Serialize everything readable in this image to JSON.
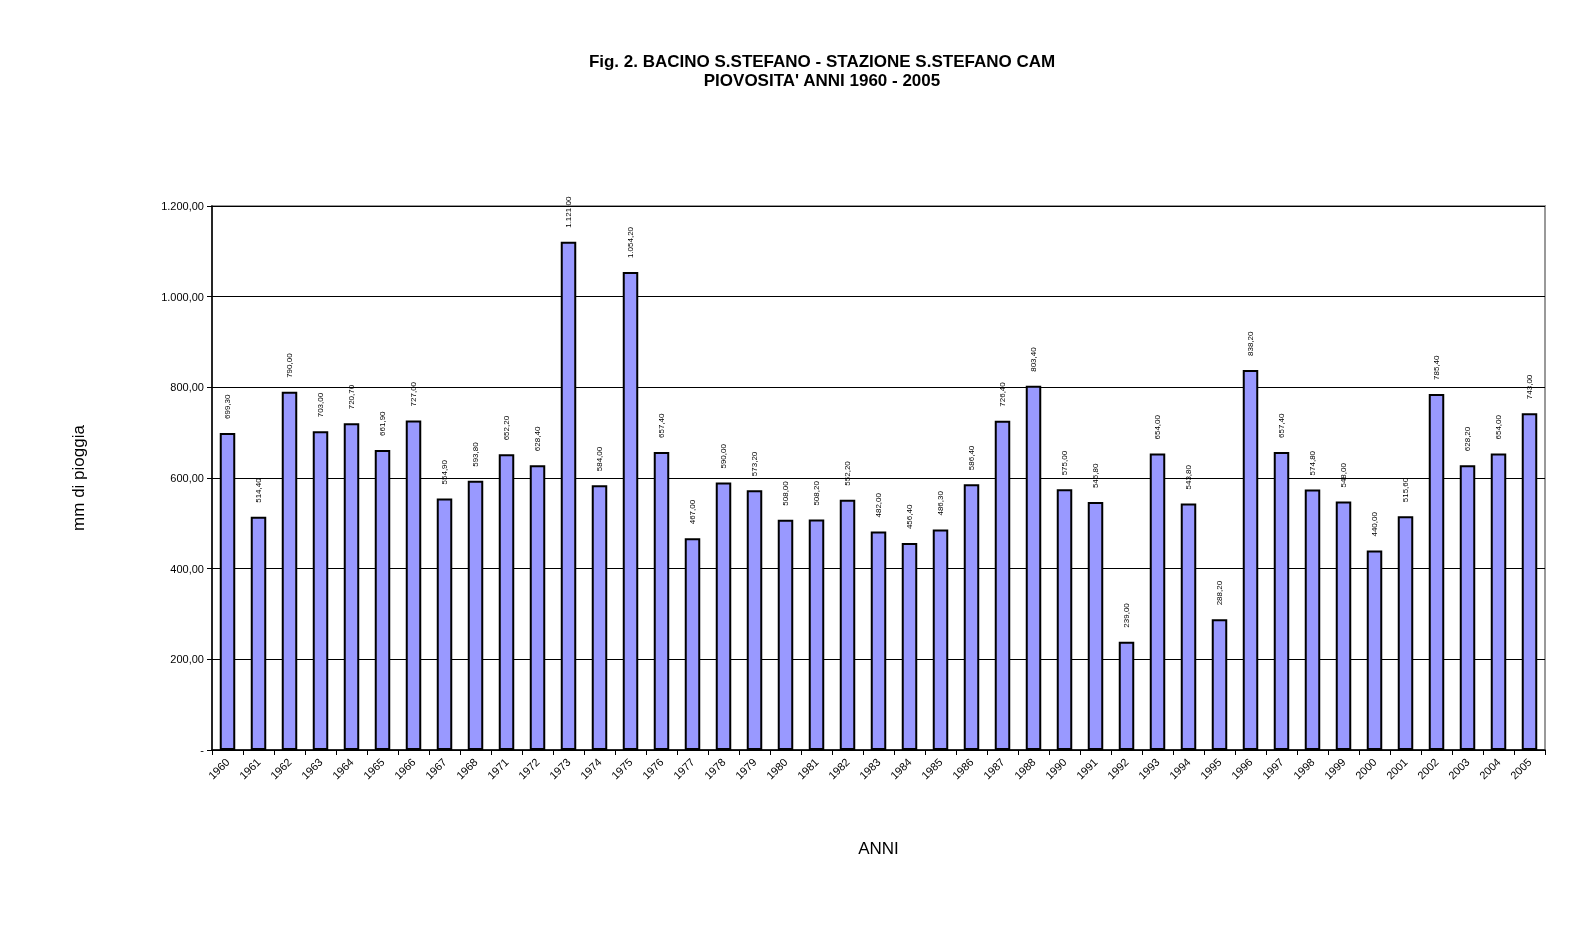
{
  "chart_data": {
    "type": "bar",
    "title": "Fig. 2. BACINO S.STEFANO - STAZIONE S.STEFANO CAM",
    "subtitle": "PIOVOSITA' ANNI 1960 - 2005",
    "xlabel": "ANNI",
    "ylabel": "mm di pioggia",
    "categories": [
      "1960",
      "1961",
      "1962",
      "1963",
      "1964",
      "1965",
      "1966",
      "1967",
      "1968",
      "1971",
      "1972",
      "1973",
      "1974",
      "1975",
      "1976",
      "1977",
      "1978",
      "1979",
      "1980",
      "1981",
      "1982",
      "1983",
      "1984",
      "1985",
      "1986",
      "1987",
      "1988",
      "1990",
      "1991",
      "1992",
      "1993",
      "1994",
      "1995",
      "1996",
      "1997",
      "1998",
      "1999",
      "2000",
      "2001",
      "2002",
      "2003",
      "2004",
      "2005"
    ],
    "values": [
      699.3,
      514.4,
      790,
      703,
      720.7,
      661.9,
      727,
      554.9,
      593.8,
      652.2,
      628.4,
      1121,
      584,
      1054.2,
      657.4,
      467,
      590,
      573.2,
      508,
      508.2,
      552.2,
      482,
      456.4,
      486.3,
      586.4,
      726.4,
      803.4,
      575,
      546.8,
      239,
      654,
      543.8,
      288.2,
      838.2,
      657.4,
      574.8,
      548,
      440,
      515.6,
      785.4,
      628.2,
      654,
      743
    ],
    "value_labels": [
      "699,30",
      "514,40",
      "790,00",
      "703,00",
      "720,70",
      "661,90",
      "727,00",
      "554,90",
      "593,80",
      "652,20",
      "628,40",
      "1.121,00",
      "584,00",
      "1.054,20",
      "657,40",
      "467,00",
      "590,00",
      "573,20",
      "508,00",
      "508,20",
      "552,20",
      "482,00",
      "456,40",
      "486,30",
      "586,40",
      "726,40",
      "803,40",
      "575,00",
      "546,80",
      "239,00",
      "654,00",
      "543,80",
      "288,20",
      "838,20",
      "657,40",
      "574,80",
      "548,00",
      "440,00",
      "515,60",
      "785,40",
      "628,20",
      "654,00",
      "743,00"
    ],
    "color": "#9999ff",
    "ylim": [
      0,
      1200
    ],
    "yticks": [
      {
        "value": 0,
        "label": "-"
      },
      {
        "value": 200,
        "label": "200,00"
      },
      {
        "value": 400,
        "label": "400,00"
      },
      {
        "value": 600,
        "label": "600,00"
      },
      {
        "value": 800,
        "label": "800,00"
      },
      {
        "value": 1000,
        "label": "1.000,00"
      },
      {
        "value": 1200,
        "label": "1.200,00"
      }
    ],
    "grid": "y"
  }
}
